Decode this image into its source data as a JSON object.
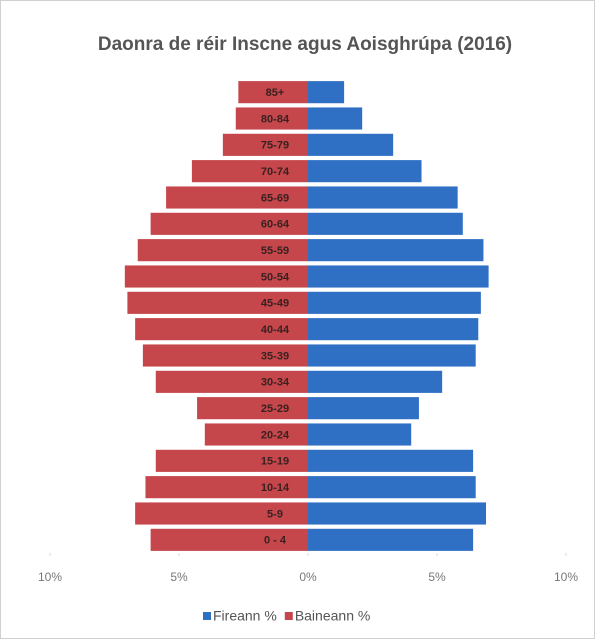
{
  "chart_data": {
    "type": "pyramid",
    "title": "Daonra de réir Inscne agus Aoisghrúpa (2016)",
    "categories": [
      "0 - 4",
      "5-9",
      "10-14",
      "15-19",
      "20-24",
      "25-29",
      "30-34",
      "35-39",
      "40-44",
      "45-49",
      "50-54",
      "55-59",
      "60-64",
      "65-69",
      "70-74",
      "75-79",
      "80-84",
      "85+"
    ],
    "series": [
      {
        "name": "Fireann %",
        "color": "#2f70c4",
        "values": [
          6.4,
          6.9,
          6.5,
          6.4,
          4.0,
          4.3,
          5.2,
          6.5,
          6.6,
          6.7,
          7.0,
          6.8,
          6.0,
          5.8,
          4.4,
          3.3,
          2.1,
          1.4
        ]
      },
      {
        "name": "Baineann %",
        "color": "#c5474b",
        "values": [
          -6.1,
          -6.7,
          -6.3,
          -5.9,
          -4.0,
          -4.3,
          -5.9,
          -6.4,
          -6.7,
          -7.0,
          -7.1,
          -6.6,
          -6.1,
          -5.5,
          -4.5,
          -3.3,
          -2.8,
          -2.7
        ]
      }
    ],
    "xlim": [
      -10,
      10
    ],
    "xticks": [
      {
        "value": -10,
        "label": "10%"
      },
      {
        "value": -5,
        "label": "5%"
      },
      {
        "value": 0,
        "label": "0%"
      },
      {
        "value": 5,
        "label": "5%"
      },
      {
        "value": 10,
        "label": "10%"
      }
    ]
  }
}
